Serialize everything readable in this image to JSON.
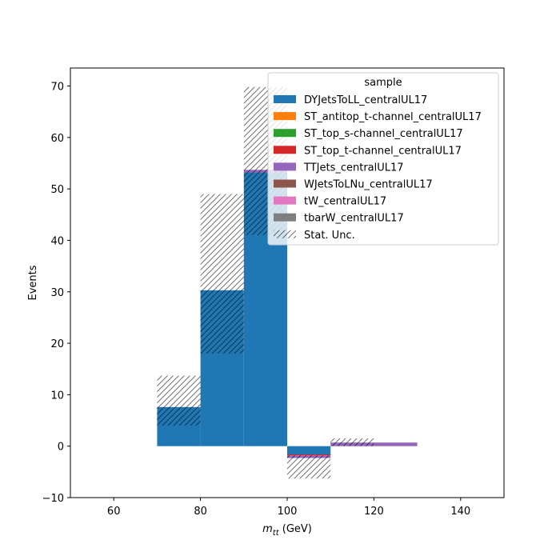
{
  "chart_data": {
    "type": "bar",
    "xlabel_main": "m",
    "xlabel_sub": "tt",
    "xlabel_unit": " (GeV)",
    "ylabel": "Events",
    "xlim": [
      50,
      150
    ],
    "ylim": [
      -10,
      73.5
    ],
    "xticks": [
      60,
      80,
      100,
      120,
      140
    ],
    "yticks": [
      -10,
      0,
      10,
      20,
      30,
      40,
      50,
      60,
      70
    ],
    "bins": [
      [
        70,
        80
      ],
      [
        80,
        90
      ],
      [
        90,
        100
      ],
      [
        100,
        110
      ],
      [
        110,
        120
      ],
      [
        120,
        130
      ]
    ],
    "series": [
      {
        "name": "DYJetsToLL_centralUL17",
        "color": "#1f77b4",
        "values": [
          7.6,
          30.3,
          53.2,
          -1.6,
          0.0,
          0.0
        ]
      },
      {
        "name": "ST_antitop_t-channel_centralUL17",
        "color": "#ff7f0e",
        "values": [
          0,
          0,
          0,
          0,
          0,
          0
        ]
      },
      {
        "name": "ST_top_s-channel_centralUL17",
        "color": "#2ca02c",
        "values": [
          0,
          0,
          0,
          0,
          0,
          0
        ]
      },
      {
        "name": "ST_top_t-channel_centralUL17",
        "color": "#d62728",
        "values": [
          0,
          0,
          0,
          -0.2,
          0,
          0
        ]
      },
      {
        "name": "TTJets_centralUL17",
        "color": "#9467bd",
        "values": [
          0,
          0,
          0.5,
          -0.5,
          0.7,
          0.7
        ]
      },
      {
        "name": "WJetsToLNu_centralUL17",
        "color": "#8c564b",
        "values": [
          0,
          0,
          0,
          0,
          0,
          0
        ]
      },
      {
        "name": "tW_centralUL17",
        "color": "#e377c2",
        "values": [
          0,
          0,
          0,
          0,
          0,
          0
        ]
      },
      {
        "name": "tbarW_centralUL17",
        "color": "#7f7f7f",
        "values": [
          0,
          0,
          0,
          0,
          0,
          0
        ]
      }
    ],
    "uncertainty": {
      "name": "Stat. Unc.",
      "low": [
        4.0,
        18.0,
        41.0,
        -6.3,
        0.0,
        0.7
      ],
      "high": [
        13.7,
        49.0,
        69.8,
        -1.8,
        1.5,
        0.7
      ]
    },
    "legend_title": "sample",
    "legend_position": "upper right",
    "grid": false
  }
}
